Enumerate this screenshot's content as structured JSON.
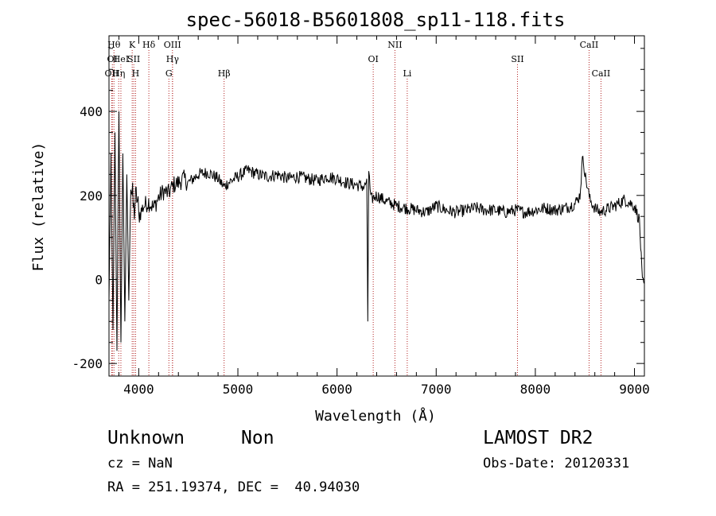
{
  "chart_data": {
    "type": "line",
    "title": "spec-56018-B5601808_sp11-118.fits",
    "xlabel": "Wavelength (Å)",
    "ylabel": "Flux (relative)",
    "xlim": [
      3700,
      9100
    ],
    "ylim": [
      -230,
      580
    ],
    "x_ticks": [
      4000,
      5000,
      6000,
      7000,
      8000,
      9000
    ],
    "y_ticks": [
      -200,
      0,
      200,
      400
    ],
    "grid": false,
    "series": [
      {
        "name": "",
        "x": [
          3700,
          3720,
          3740,
          3760,
          3780,
          3800,
          3820,
          3840,
          3860,
          3880,
          3900,
          3920,
          3950,
          3980,
          4000,
          4050,
          4100,
          4150,
          4200,
          4250,
          4300,
          4350,
          4400,
          4450,
          4500,
          4600,
          4700,
          4800,
          4860,
          4900,
          5000,
          5100,
          5200,
          5300,
          5400,
          5500,
          5600,
          5700,
          5800,
          5900,
          6000,
          6100,
          6200,
          6280,
          6300,
          6310,
          6320,
          6340,
          6400,
          6500,
          6560,
          6600,
          6700,
          6800,
          6900,
          7000,
          7100,
          7200,
          7300,
          7400,
          7500,
          7600,
          7700,
          7800,
          7900,
          8000,
          8100,
          8200,
          8300,
          8400,
          8450,
          8480,
          8500,
          8550,
          8600,
          8650,
          8700,
          8800,
          8900,
          9000,
          9050,
          9080,
          9100
        ],
        "values": [
          -50,
          300,
          -120,
          350,
          -170,
          400,
          -150,
          300,
          -100,
          250,
          -50,
          230,
          160,
          200,
          150,
          175,
          185,
          170,
          195,
          210,
          205,
          225,
          230,
          240,
          230,
          250,
          255,
          240,
          220,
          230,
          245,
          260,
          250,
          245,
          250,
          240,
          245,
          240,
          235,
          245,
          240,
          230,
          225,
          220,
          240,
          -100,
          260,
          190,
          200,
          185,
          180,
          175,
          170,
          165,
          160,
          175,
          165,
          160,
          165,
          170,
          165,
          165,
          160,
          165,
          160,
          165,
          170,
          165,
          170,
          180,
          200,
          300,
          250,
          190,
          170,
          160,
          165,
          175,
          190,
          175,
          140,
          -10,
          -10
        ]
      }
    ],
    "lines": [
      {
        "label": "OII",
        "x": 3727,
        "row": 3
      },
      {
        "label": "OI",
        "x": 3734,
        "row": 2
      },
      {
        "label": "Hθ",
        "x": 3750,
        "row": 1
      },
      {
        "label": "Hη",
        "x": 3798,
        "row": 3
      },
      {
        "label": "HeI",
        "x": 3820,
        "row": 2
      },
      {
        "label": "K",
        "x": 3934,
        "row": 1
      },
      {
        "label": "SII",
        "x": 3950,
        "row": 2
      },
      {
        "label": "H",
        "x": 3968,
        "row": 3
      },
      {
        "label": "Hδ",
        "x": 4102,
        "row": 1
      },
      {
        "label": "G",
        "x": 4304,
        "row": 3
      },
      {
        "label": "OIII",
        "x": 4340,
        "row": 1
      },
      {
        "label": "Hγ",
        "x": 4341,
        "row": 2
      },
      {
        "label": "Hβ",
        "x": 4861,
        "row": 3
      },
      {
        "label": "OI",
        "x": 6365,
        "row": 2
      },
      {
        "label": "NII",
        "x": 6584,
        "row": 1
      },
      {
        "label": "Li",
        "x": 6708,
        "row": 3
      },
      {
        "label": "SII",
        "x": 7820,
        "row": 2
      },
      {
        "label": "CaII",
        "x": 8542,
        "row": 1
      },
      {
        "label": "CaII",
        "x": 8662,
        "row": 3
      }
    ]
  },
  "footer": {
    "object_class": "Unknown",
    "subclass": "Non",
    "survey": "LAMOST DR2",
    "redshift": "cz = NaN",
    "obs_date": "Obs-Date: 20120331",
    "coords": "RA = 251.19374, DEC =  40.94030"
  }
}
